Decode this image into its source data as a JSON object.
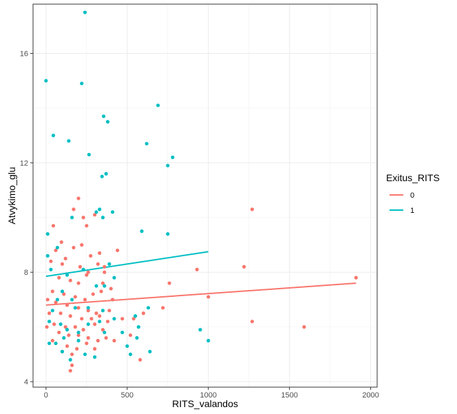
{
  "chart_data": {
    "type": "scatter",
    "xlabel": "RITS_valandos",
    "ylabel": "Atvykimo_glu",
    "xlim": [
      -80,
      2040
    ],
    "ylim": [
      3.8,
      17.8
    ],
    "x_ticks": [
      0,
      500,
      1000,
      1500,
      2000
    ],
    "x_tick_labels": [
      "0",
      "500",
      "1000",
      "1500",
      "2000"
    ],
    "y_ticks": [
      4,
      8,
      12,
      16
    ],
    "y_tick_labels": [
      "4",
      "8",
      "12",
      "16"
    ],
    "grid": true,
    "legend": {
      "title": "Exitus_RITS",
      "position": "right"
    },
    "series": [
      {
        "name": "0",
        "color": "#F8766D",
        "points": [
          [
            45,
            9.7
          ],
          [
            95,
            9.1
          ],
          [
            170,
            10.3
          ],
          [
            200,
            10.7
          ],
          [
            230,
            10.0
          ],
          [
            250,
            9.7
          ],
          [
            300,
            10.1
          ],
          [
            60,
            8.8
          ],
          [
            120,
            8.5
          ],
          [
            170,
            8.9
          ],
          [
            220,
            9.0
          ],
          [
            275,
            8.6
          ],
          [
            330,
            8.7
          ],
          [
            440,
            8.8
          ],
          [
            30,
            8.4
          ],
          [
            100,
            8.3
          ],
          [
            210,
            8.2
          ],
          [
            260,
            8.0
          ],
          [
            320,
            8.3
          ],
          [
            360,
            8.2
          ],
          [
            80,
            7.8
          ],
          [
            150,
            7.7
          ],
          [
            200,
            7.6
          ],
          [
            250,
            7.9
          ],
          [
            350,
            7.6
          ],
          [
            400,
            7.4
          ],
          [
            40,
            7.3
          ],
          [
            110,
            7.2
          ],
          [
            180,
            7.1
          ],
          [
            240,
            7.0
          ],
          [
            290,
            7.2
          ],
          [
            340,
            7.3
          ],
          [
            60,
            6.9
          ],
          [
            130,
            6.8
          ],
          [
            200,
            6.7
          ],
          [
            260,
            6.6
          ],
          [
            310,
            6.5
          ],
          [
            390,
            6.6
          ],
          [
            90,
            6.5
          ],
          [
            150,
            6.4
          ],
          [
            220,
            6.3
          ],
          [
            280,
            6.3
          ],
          [
            330,
            6.4
          ],
          [
            380,
            6.2
          ],
          [
            50,
            6.1
          ],
          [
            120,
            6.0
          ],
          [
            180,
            6.0
          ],
          [
            230,
            5.9
          ],
          [
            300,
            6.1
          ],
          [
            350,
            5.9
          ],
          [
            80,
            5.8
          ],
          [
            140,
            5.7
          ],
          [
            200,
            5.7
          ],
          [
            260,
            5.6
          ],
          [
            320,
            5.5
          ],
          [
            370,
            5.6
          ],
          [
            60,
            5.4
          ],
          [
            130,
            5.3
          ],
          [
            190,
            5.2
          ],
          [
            250,
            5.4
          ],
          [
            300,
            5.2
          ],
          [
            420,
            5.5
          ],
          [
            100,
            5.1
          ],
          [
            160,
            5.0
          ],
          [
            40,
            5.5
          ],
          [
            20,
            6.5
          ],
          [
            10,
            7.0
          ],
          [
            5,
            6.0
          ],
          [
            150,
            4.4
          ],
          [
            160,
            4.6
          ],
          [
            580,
            4.8
          ],
          [
            540,
            6.3
          ],
          [
            520,
            5.7
          ],
          [
            600,
            6.5
          ],
          [
            720,
            6.7
          ],
          [
            760,
            7.6
          ],
          [
            930,
            8.1
          ],
          [
            1000,
            7.1
          ],
          [
            1220,
            8.2
          ],
          [
            1270,
            10.3
          ],
          [
            1270,
            6.2
          ],
          [
            1590,
            6.0
          ],
          [
            1910,
            7.8
          ],
          [
            360,
            8.0
          ],
          [
            410,
            7.0
          ],
          [
            470,
            6.3
          ]
        ],
        "trend": [
          [
            0,
            6.8
          ],
          [
            1910,
            7.6
          ]
        ]
      },
      {
        "name": "1",
        "color": "#00BFC4",
        "points": [
          [
            240,
            17.5
          ],
          [
            0,
            15.0
          ],
          [
            220,
            14.9
          ],
          [
            690,
            14.1
          ],
          [
            355,
            13.7
          ],
          [
            380,
            13.5
          ],
          [
            45,
            13.0
          ],
          [
            140,
            12.8
          ],
          [
            620,
            12.7
          ],
          [
            265,
            12.3
          ],
          [
            780,
            12.2
          ],
          [
            750,
            11.9
          ],
          [
            370,
            11.6
          ],
          [
            345,
            11.5
          ],
          [
            10,
            9.4
          ],
          [
            160,
            10.0
          ],
          [
            310,
            10.2
          ],
          [
            330,
            10.3
          ],
          [
            410,
            10.2
          ],
          [
            350,
            10.0
          ],
          [
            590,
            9.5
          ],
          [
            750,
            9.4
          ],
          [
            10,
            8.6
          ],
          [
            30,
            8.1
          ],
          [
            70,
            8.9
          ],
          [
            130,
            7.9
          ],
          [
            230,
            8.1
          ],
          [
            310,
            7.5
          ],
          [
            390,
            8.3
          ],
          [
            420,
            7.8
          ],
          [
            360,
            7.5
          ],
          [
            100,
            7.3
          ],
          [
            160,
            7.0
          ],
          [
            70,
            7.0
          ],
          [
            40,
            6.6
          ],
          [
            180,
            6.7
          ],
          [
            260,
            6.7
          ],
          [
            350,
            6.6
          ],
          [
            420,
            6.3
          ],
          [
            550,
            6.4
          ],
          [
            570,
            6.0
          ],
          [
            630,
            6.7
          ],
          [
            20,
            6.2
          ],
          [
            90,
            6.1
          ],
          [
            130,
            5.9
          ],
          [
            200,
            5.8
          ],
          [
            260,
            6.1
          ],
          [
            330,
            6.2
          ],
          [
            360,
            5.8
          ],
          [
            470,
            5.8
          ],
          [
            560,
            5.6
          ],
          [
            500,
            5.3
          ],
          [
            520,
            5.0
          ],
          [
            640,
            5.1
          ],
          [
            950,
            5.9
          ],
          [
            1000,
            5.5
          ],
          [
            60,
            5.4
          ],
          [
            100,
            5.1
          ],
          [
            150,
            4.8
          ],
          [
            240,
            5.0
          ],
          [
            300,
            4.9
          ],
          [
            20,
            5.4
          ],
          [
            110,
            5.6
          ],
          [
            200,
            5.5
          ]
        ],
        "trend": [
          [
            0,
            7.85
          ],
          [
            1000,
            8.75
          ]
        ]
      }
    ]
  }
}
